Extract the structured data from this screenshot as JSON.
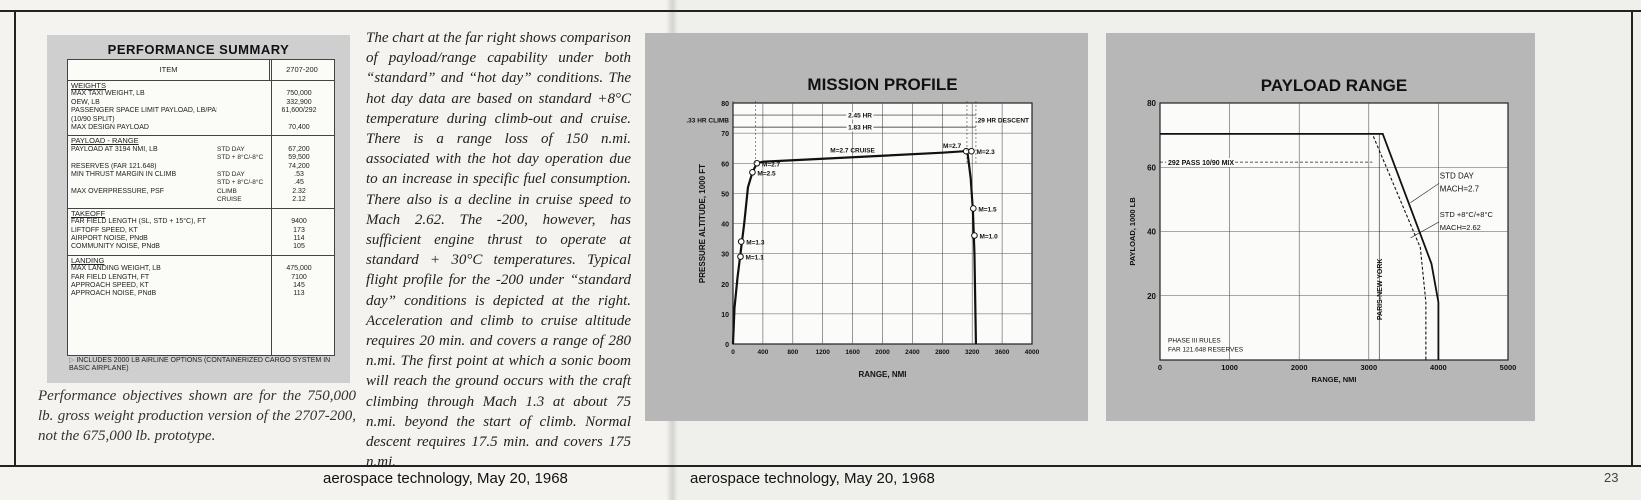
{
  "performance_summary": {
    "title": "PERFORMANCE SUMMARY",
    "col_item": "ITEM",
    "col_value": "2707-200",
    "sections": [
      {
        "title": "WEIGHTS",
        "rows": [
          {
            "label": "MAX TAXI WEIGHT, LB",
            "sub": "",
            "value": "750,000"
          },
          {
            "label": "OEW, LB",
            "sub": "",
            "value": "332,900"
          },
          {
            "label": "PASSENGER SPACE LIMIT PAYLOAD, LB/PASS.",
            "sub": "",
            "value": "61,600/292"
          },
          {
            "label": "(10/90 SPLIT)",
            "sub": "",
            "value": ""
          },
          {
            "label": "MAX DESIGN PAYLOAD",
            "sub": "",
            "value": "70,400"
          }
        ]
      },
      {
        "title": "PAYLOAD - RANGE",
        "rows": [
          {
            "label": "PAYLOAD AT 3194 NMI, LB",
            "sub": "STD DAY",
            "value": "67,200"
          },
          {
            "label": "",
            "sub": "STD + 8°C/-8°C",
            "value": "59,500"
          },
          {
            "label": "RESERVES (FAR 121.648)",
            "sub": "",
            "value": "74,200"
          },
          {
            "label": "MIN THRUST MARGIN IN CLIMB",
            "sub": "STD DAY",
            "value": ".53"
          },
          {
            "label": "",
            "sub": "STD + 8°C/-8°C",
            "value": ".45"
          },
          {
            "label": "MAX OVERPRESSURE, PSF",
            "sub": "CLIMB",
            "value": "2.32"
          },
          {
            "label": "",
            "sub": "CRUISE",
            "value": "2.12"
          }
        ]
      },
      {
        "title": "TAKEOFF",
        "rows": [
          {
            "label": "FAR FIELD LENGTH (SL, STD + 15°C), FT",
            "sub": "",
            "value": "9400"
          },
          {
            "label": "LIFTOFF SPEED, KT",
            "sub": "",
            "value": "173"
          },
          {
            "label": "AIRPORT NOISE, PNdB",
            "sub": "",
            "value": "114"
          },
          {
            "label": "COMMUNITY NOISE, PNdB",
            "sub": "",
            "value": "105"
          }
        ]
      },
      {
        "title": "LANDING",
        "rows": [
          {
            "label": "MAX LANDING WEIGHT, LB",
            "sub": "",
            "value": "475,000"
          },
          {
            "label": "FAR FIELD LENGTH, FT",
            "sub": "",
            "value": "7100"
          },
          {
            "label": "APPROACH SPEED, KT",
            "sub": "",
            "value": "145"
          },
          {
            "label": "APPROACH NOISE, PNdB",
            "sub": "",
            "value": "113"
          }
        ]
      }
    ],
    "footnote": "INCLUDES 2000 LB AIRLINE OPTIONS (CONTAINERIZED CARGO SYSTEM IN BASIC AIRPLANE)"
  },
  "performance_caption": "Performance objectives shown are for the 750,000 lb. gross weight production version of the 2707-200, not the 675,000 lb. prototype.",
  "body_text": "The chart at the far right shows comparison of payload/range capability under both “standard” and “hot day” conditions. The hot day data are based on standard +8°C temperature during climb-out and cruise. There is a range loss of 150 n.mi. associated with the hot day operation due to an increase in specific fuel consumption. There also is a decline in cruise speed to Mach 2.62. The -200, however, has sufficient engine thrust to operate at standard + 30°C temperatures. Typical flight profile for the -200 under “standard day” conditions is depicted at the right. Acceleration and climb to cruise altitude requires 20 min. and covers a range of 280 n.mi. The first point at which a sonic boom will reach the ground occurs with the craft climbing through Mach 1.3 at about 75 n.mi. beyond the start of climb. Normal descent requires 17.5 min. and covers 175 n.mi.",
  "footer": {
    "left": "aerospace technology, May 20, 1968",
    "right": "aerospace technology, May 20, 1968",
    "page_number": "23"
  },
  "chart_data": [
    {
      "type": "line",
      "title": "MISSION PROFILE",
      "xlabel": "RANGE, NMI",
      "ylabel": "PRESSURE ALTITUDE, 1000 FT",
      "xlim": [
        0,
        4000
      ],
      "ylim": [
        0,
        80
      ],
      "x_ticks": [
        "0",
        "400",
        "800",
        "1200",
        "1600",
        "2000",
        "2400",
        "2800",
        "3200",
        "3600",
        "4000"
      ],
      "y_ticks": [
        "0",
        "10",
        "20",
        "30",
        "40",
        "50",
        "60",
        "70",
        "80"
      ],
      "grid": true,
      "series": [
        {
          "x": [
            0,
            20,
            60,
            100,
            150,
            200,
            260,
            320,
            400,
            1200,
            2000,
            2800,
            3100,
            3140,
            3180,
            3210,
            3230,
            3250
          ],
          "y": [
            0,
            12,
            22,
            30,
            40,
            52,
            57,
            60,
            60.5,
            61.5,
            62.5,
            63.5,
            64,
            63,
            55,
            44,
            30,
            0
          ]
        }
      ],
      "markers": [
        {
          "label": "M=1.1",
          "x": 100,
          "y": 29
        },
        {
          "label": "M=1.3",
          "x": 110,
          "y": 34
        },
        {
          "label": "M=2.5",
          "x": 260,
          "y": 57
        },
        {
          "label": "M=2.7",
          "x": 320,
          "y": 60
        },
        {
          "label": "M=2.7",
          "x": 3120,
          "y": 64
        },
        {
          "label": "M=2.3",
          "x": 3190,
          "y": 64
        },
        {
          "label": "M=1.5",
          "x": 3215,
          "y": 45
        },
        {
          "label": "M=1.0",
          "x": 3230,
          "y": 36
        }
      ],
      "annotations": [
        {
          "text": "M=2.7 CRUISE",
          "x": 1600,
          "y": 63
        },
        {
          "text": "2.45 HR",
          "x": 1700,
          "y": 76
        },
        {
          "text": "1.83 HR",
          "x": 1700,
          "y": 72
        },
        {
          "text": ".33 HR CLIMB",
          "x": -150,
          "y": 72
        },
        {
          "text": ".29 HR DESCENT",
          "x": 3500,
          "y": 72
        }
      ]
    },
    {
      "type": "line",
      "title": "PAYLOAD RANGE",
      "xlabel": "RANGE, NMI",
      "ylabel": "PAYLOAD, 1000 LB",
      "xlim": [
        0,
        5000
      ],
      "ylim": [
        0,
        80
      ],
      "x_ticks": [
        "0",
        "1000",
        "2000",
        "3000",
        "4000",
        "5000"
      ],
      "y_ticks": [
        "20",
        "40",
        "60",
        "80"
      ],
      "grid": true,
      "series": [
        {
          "name": "STD DAY MACH=2.7",
          "x": [
            0,
            3200,
            3900,
            4000,
            4000
          ],
          "y": [
            70.4,
            70.4,
            30,
            18,
            0
          ]
        },
        {
          "name": "STD +8°C/+8°C MACH=2.62",
          "x": [
            0,
            3050,
            3740,
            3820,
            3820
          ],
          "y": [
            70.4,
            70.4,
            35,
            18,
            0
          ]
        }
      ],
      "annotations": [
        {
          "text": "292 PASS 10/90 MIX",
          "x": 1100,
          "y": 61.6
        },
        {
          "text": "PARIS-NEW YORK",
          "x": 3150,
          "y": 15
        },
        {
          "text": "PHASE III RULES",
          "x": 50,
          "y": 4
        },
        {
          "text": "FAR 121.648 RESERVES",
          "x": 50,
          "y": 1
        }
      ],
      "reference_lines": [
        {
          "type": "horizontal",
          "y": 61.6,
          "label": "292 PASS 10/90 MIX"
        },
        {
          "type": "vertical",
          "x": 3150,
          "label": "PARIS-NEW YORK"
        }
      ]
    }
  ]
}
